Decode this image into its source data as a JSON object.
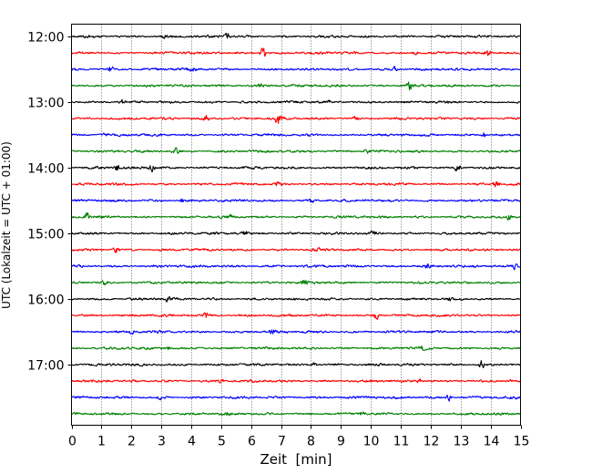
{
  "chart_data": {
    "type": "line",
    "subtype": "helicorder-seismogram",
    "xlabel": "Zeit  [min]",
    "ylabel": "UTC (Lokalzeit = UTC + 01:00)",
    "xlim": [
      0,
      15
    ],
    "x_ticks": [
      "0",
      "1",
      "2",
      "3",
      "4",
      "5",
      "6",
      "7",
      "8",
      "9",
      "10",
      "11",
      "12",
      "13",
      "14",
      "15"
    ],
    "y_ticks": [
      "12:00",
      "13:00",
      "14:00",
      "15:00",
      "16:00",
      "17:00"
    ],
    "grid": "vertical dotted lines at each minute",
    "trace_interval_minutes": 15,
    "trace_colors": [
      "#000000",
      "#ff0000",
      "#0000ff",
      "#008000"
    ],
    "rows": [
      {
        "start": "12:00",
        "color": "#000000",
        "events": [
          [
            5.2,
            1.3
          ],
          [
            3.1,
            0.8
          ]
        ]
      },
      {
        "start": "12:15",
        "color": "#ff0000",
        "events": [
          [
            6.4,
            2.6
          ],
          [
            13.9,
            1.8
          ],
          [
            11.5,
            0.9
          ]
        ]
      },
      {
        "start": "12:30",
        "color": "#0000ff",
        "events": [
          [
            1.3,
            1.4
          ],
          [
            4.0,
            1.2
          ],
          [
            10.8,
            1.0
          ]
        ]
      },
      {
        "start": "12:45",
        "color": "#008000",
        "events": [
          [
            11.3,
            2.0
          ],
          [
            6.3,
            0.9
          ]
        ]
      },
      {
        "start": "13:00",
        "color": "#000000",
        "events": [
          [
            1.7,
            1.0
          ],
          [
            8.6,
            0.8
          ]
        ]
      },
      {
        "start": "13:15",
        "color": "#ff0000",
        "events": [
          [
            6.9,
            2.8
          ],
          [
            4.5,
            1.3
          ],
          [
            9.5,
            0.9
          ]
        ]
      },
      {
        "start": "13:30",
        "color": "#0000ff",
        "events": [
          [
            1.1,
            0.9
          ],
          [
            13.8,
            1.1
          ]
        ]
      },
      {
        "start": "13:45",
        "color": "#008000",
        "events": [
          [
            3.5,
            1.1
          ],
          [
            9.9,
            1.5
          ]
        ]
      },
      {
        "start": "14:00",
        "color": "#000000",
        "events": [
          [
            1.5,
            1.8
          ],
          [
            2.7,
            1.6
          ],
          [
            12.9,
            1.5
          ]
        ]
      },
      {
        "start": "14:15",
        "color": "#ff0000",
        "events": [
          [
            6.9,
            1.2
          ],
          [
            14.2,
            1.6
          ]
        ]
      },
      {
        "start": "14:30",
        "color": "#0000ff",
        "events": [
          [
            3.7,
            1.0
          ],
          [
            8.0,
            1.1
          ]
        ]
      },
      {
        "start": "14:45",
        "color": "#008000",
        "events": [
          [
            0.5,
            1.6
          ],
          [
            5.3,
            0.9
          ],
          [
            14.6,
            1.0
          ]
        ]
      },
      {
        "start": "15:00",
        "color": "#000000",
        "events": [
          [
            5.8,
            1.2
          ],
          [
            10.1,
            0.9
          ]
        ]
      },
      {
        "start": "15:15",
        "color": "#ff0000",
        "events": [
          [
            1.5,
            1.1
          ],
          [
            8.2,
            0.9
          ]
        ]
      },
      {
        "start": "15:30",
        "color": "#0000ff",
        "events": [
          [
            11.9,
            1.3
          ],
          [
            14.8,
            1.0
          ]
        ]
      },
      {
        "start": "15:45",
        "color": "#008000",
        "events": [
          [
            1.1,
            1.0
          ],
          [
            7.8,
            1.0
          ]
        ]
      },
      {
        "start": "16:00",
        "color": "#000000",
        "events": [
          [
            3.2,
            1.1
          ],
          [
            12.6,
            0.9
          ]
        ]
      },
      {
        "start": "16:15",
        "color": "#ff0000",
        "events": [
          [
            4.5,
            1.4
          ],
          [
            10.2,
            1.5
          ]
        ]
      },
      {
        "start": "16:30",
        "color": "#0000ff",
        "events": [
          [
            2.0,
            0.9
          ],
          [
            6.7,
            0.8
          ]
        ]
      },
      {
        "start": "16:45",
        "color": "#008000",
        "events": [
          [
            3.2,
            1.1
          ],
          [
            11.7,
            0.8
          ]
        ]
      },
      {
        "start": "17:00",
        "color": "#000000",
        "events": [
          [
            8.1,
            1.0
          ],
          [
            13.7,
            1.6
          ]
        ]
      },
      {
        "start": "17:15",
        "color": "#ff0000",
        "events": [
          [
            11.6,
            1.0
          ],
          [
            5.0,
            0.8
          ]
        ]
      },
      {
        "start": "17:30",
        "color": "#0000ff",
        "events": [
          [
            12.6,
            1.4
          ],
          [
            3.0,
            0.9
          ]
        ]
      },
      {
        "start": "17:45",
        "color": "#008000",
        "events": [
          [
            5.2,
            0.9
          ],
          [
            9.7,
            0.8
          ]
        ]
      }
    ]
  }
}
